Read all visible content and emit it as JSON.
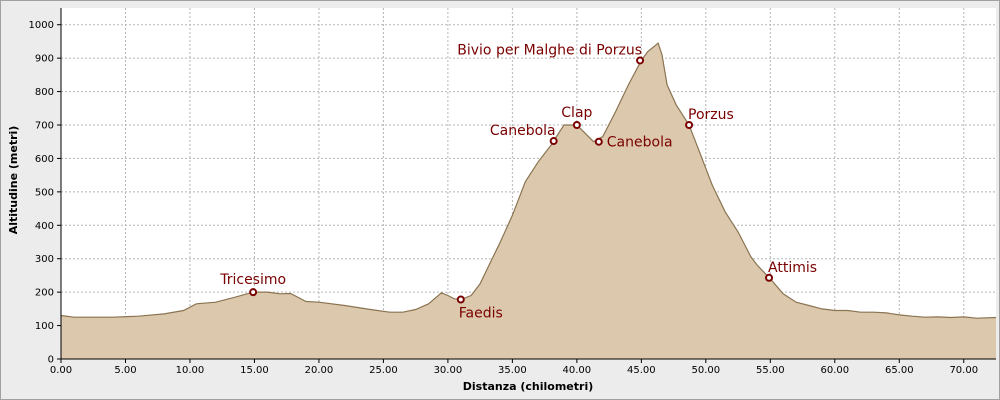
{
  "chart_data": {
    "type": "area",
    "title": "",
    "xlabel": "Distanza (chilometri)",
    "ylabel": "Altitudine (metri)",
    "xlim": [
      0,
      72.5
    ],
    "ylim": [
      0,
      1050
    ],
    "x_ticks": [
      0,
      5,
      10,
      15,
      20,
      25,
      30,
      35,
      40,
      45,
      50,
      55,
      60,
      65,
      70
    ],
    "x_tick_labels": [
      "0.00",
      "5.00",
      "10.00",
      "15.00",
      "20.00",
      "25.00",
      "30.00",
      "35.00",
      "40.00",
      "45.00",
      "50.00",
      "55.00",
      "60.00",
      "65.00",
      "70.00"
    ],
    "y_ticks": [
      0,
      100,
      200,
      300,
      400,
      500,
      600,
      700,
      800,
      900,
      1000
    ],
    "y_tick_labels": [
      "0",
      "100",
      "200",
      "300",
      "400",
      "500",
      "600",
      "700",
      "800",
      "900",
      "1000"
    ],
    "grid": true,
    "colors": {
      "fill": "#dcc9ad",
      "line": "#8a7452",
      "marker": "#7a0000",
      "label": "#7a0000",
      "plot_bg": "#ffffff"
    },
    "profile": {
      "x": [
        0,
        1,
        2,
        4,
        6,
        8,
        9.5,
        10.5,
        12,
        13.5,
        14.9,
        16,
        17,
        17.8,
        19,
        20,
        22,
        24,
        25.5,
        26.5,
        27.5,
        28.5,
        29.5,
        30,
        30.5,
        31,
        31.8,
        32.5,
        33.3,
        34,
        35,
        36,
        37,
        38,
        38.2,
        39,
        40,
        41.3,
        42,
        43,
        44,
        45,
        45.5,
        46,
        46.3,
        46.6,
        47,
        47.7,
        48.7,
        49.5,
        50.5,
        51.5,
        52.5,
        53.5,
        54,
        55,
        56,
        57,
        58,
        59,
        60,
        61,
        62,
        63,
        64,
        65,
        66,
        67,
        68,
        69,
        70,
        71,
        72.5
      ],
      "y": [
        130,
        125,
        125,
        125,
        128,
        135,
        145,
        165,
        170,
        185,
        200,
        200,
        195,
        196,
        172,
        170,
        160,
        148,
        140,
        140,
        148,
        165,
        198,
        190,
        180,
        178,
        190,
        225,
        290,
        345,
        430,
        530,
        590,
        640,
        652,
        700,
        700,
        650,
        665,
        740,
        820,
        893,
        920,
        935,
        945,
        910,
        820,
        760,
        700,
        620,
        520,
        440,
        380,
        305,
        280,
        240,
        195,
        170,
        160,
        150,
        145,
        145,
        140,
        140,
        138,
        132,
        128,
        125,
        126,
        124,
        126,
        122,
        124
      ]
    },
    "waypoints": [
      {
        "name": "Tricesimo",
        "x": 14.9,
        "y": 200,
        "label_pos": "above"
      },
      {
        "name": "Faedis",
        "x": 31,
        "y": 178,
        "label_pos": "below"
      },
      {
        "name": "Canebola",
        "x": 38.2,
        "y": 652,
        "label_pos": "above-left"
      },
      {
        "name": "Clap",
        "x": 40,
        "y": 700,
        "label_pos": "above"
      },
      {
        "name": "Canebola",
        "x": 41.7,
        "y": 650,
        "label_pos": "right"
      },
      {
        "name": "Bivio per Malghe di Porzus",
        "x": 44.9,
        "y": 893,
        "label_pos": "above-left"
      },
      {
        "name": "Porzus",
        "x": 48.7,
        "y": 700,
        "label_pos": "above-right"
      },
      {
        "name": "Attimis",
        "x": 54.9,
        "y": 243,
        "label_pos": "above-right"
      }
    ]
  }
}
